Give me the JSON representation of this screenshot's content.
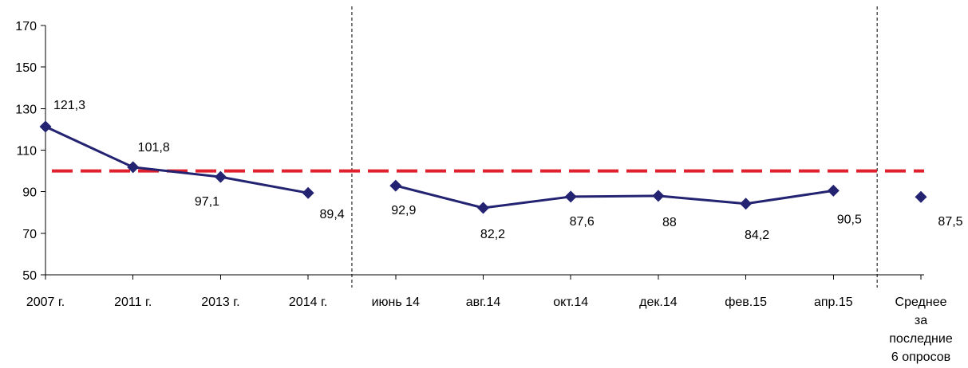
{
  "chart_data": {
    "type": "line",
    "categories": [
      "2007 г.",
      "2011 г.",
      "2013 г.",
      "2014 г.",
      "июнь 14",
      "авг.14",
      "окт.14",
      "дек.14",
      "фев.15",
      "апр.15",
      "Среднее за последние 6 опросов"
    ],
    "category_label_lines": [
      [
        "2007 г."
      ],
      [
        "2011 г."
      ],
      [
        "2013 г."
      ],
      [
        "2014 г."
      ],
      [
        "июнь 14"
      ],
      [
        "авг.14"
      ],
      [
        "окт.14"
      ],
      [
        "дек.14"
      ],
      [
        "фев.15"
      ],
      [
        "апр.15"
      ],
      [
        "Среднее",
        "за",
        "последние",
        "6 опросов"
      ]
    ],
    "series": [
      {
        "values": [
          121.3,
          101.8,
          97.1,
          89.4,
          92.9,
          82.2,
          87.6,
          88,
          84.2,
          90.5,
          87.5
        ],
        "data_labels": [
          "121,3",
          "101,8",
          "97,1",
          "89,4",
          "92,9",
          "82,2",
          "87,6",
          "88",
          "84,2",
          "90,5",
          "87,5"
        ],
        "segments": [
          [
            0,
            3
          ],
          [
            4,
            9
          ],
          [
            10,
            10
          ]
        ],
        "color": "#232372"
      }
    ],
    "reference_line": {
      "value": 100,
      "color": "#e0202c",
      "style": "dashed"
    },
    "separators_after_category": [
      3,
      9
    ],
    "yticks": [
      50,
      70,
      90,
      110,
      130,
      150,
      170
    ],
    "ylim": [
      50,
      170
    ],
    "grid": false,
    "legend": "none"
  }
}
